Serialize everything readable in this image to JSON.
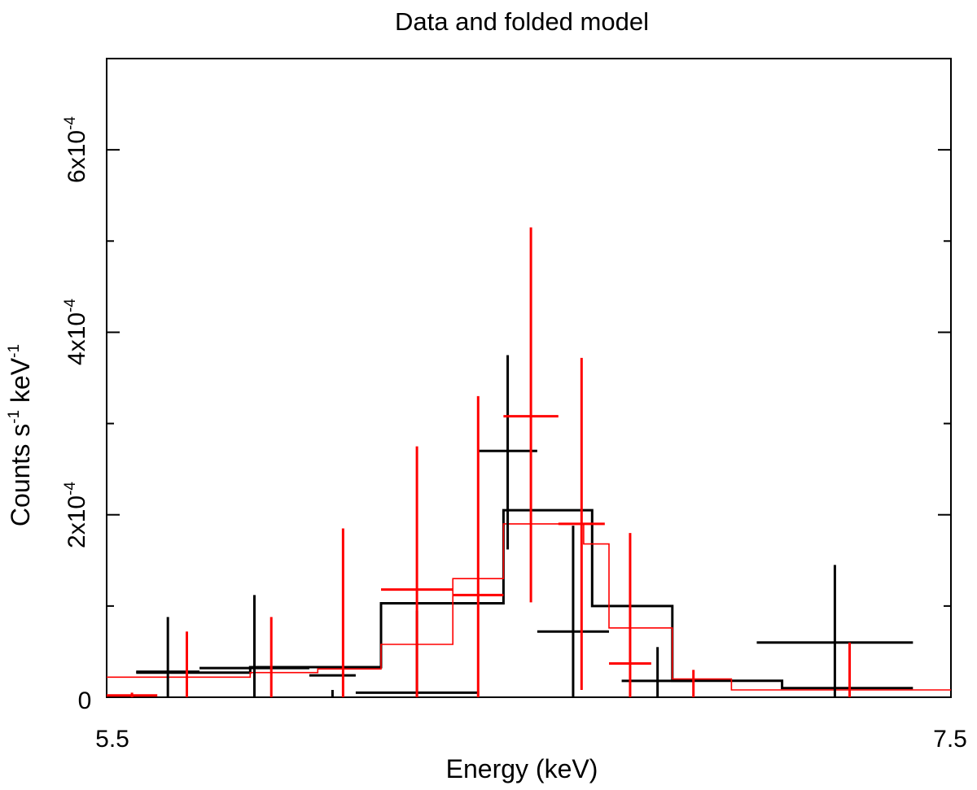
{
  "chart_data": {
    "type": "step-histogram-with-errorbars",
    "title": "Data and folded model",
    "xlabel": "Energy (keV)",
    "ylabel": {
      "base": "Counts s",
      "sup1": "-1",
      "mid": " keV",
      "sup2": "-1"
    },
    "xlim": [
      5.5,
      7.5
    ],
    "ylim": [
      0,
      0.0007
    ],
    "x_ticks": [
      {
        "value": 5.5,
        "label": "5.5"
      },
      {
        "value": 7.5,
        "label": "7.5"
      }
    ],
    "y_ticks": [
      {
        "value": 0,
        "label": "0"
      },
      {
        "value": 0.0002,
        "mantissa": "2x10",
        "exp": "-4"
      },
      {
        "value": 0.0004,
        "mantissa": "4x10",
        "exp": "-4"
      },
      {
        "value": 0.0006,
        "mantissa": "6x10",
        "exp": "-4"
      }
    ],
    "y_minor_step": 0.0001,
    "series": [
      {
        "name": "data set 1",
        "color": "#000000",
        "points": [
          {
            "x0": 5.57,
            "x1": 5.72,
            "y": 2.8e-05,
            "ylo": 0.0,
            "yhi": 8.8e-05
          },
          {
            "x0": 5.72,
            "x1": 5.98,
            "y": 3.2e-05,
            "ylo": 0.0,
            "yhi": 0.000112
          },
          {
            "x0": 5.98,
            "x1": 6.09,
            "y": 2.4e-05,
            "ylo": 0.0,
            "yhi": 8e-06
          },
          {
            "x0": 6.09,
            "x1": 6.38,
            "y": 5e-06,
            "ylo": 0.0,
            "yhi": 9.5e-05
          },
          {
            "x0": 6.38,
            "x1": 6.52,
            "y": 0.00027,
            "ylo": 0.000162,
            "yhi": 0.000375
          },
          {
            "x0": 6.52,
            "x1": 6.69,
            "y": 7.2e-05,
            "ylo": 0.0,
            "yhi": 0.000188
          },
          {
            "x0": 6.72,
            "x1": 6.89,
            "y": 1.8e-05,
            "ylo": 0.0,
            "yhi": 5.5e-05
          },
          {
            "x0": 7.04,
            "x1": 7.41,
            "y": 6e-05,
            "ylo": 0.0,
            "yhi": 0.000145
          }
        ]
      },
      {
        "name": "data set 2",
        "color": "#ff0000",
        "points": [
          {
            "x0": 5.5,
            "x1": 5.62,
            "y": 2e-06,
            "ylo": 0.0,
            "yhi": 5e-06
          },
          {
            "x0": 5.69,
            "x1": 5.69,
            "y": 2.5e-05,
            "ylo": 0.0,
            "yhi": 7.2e-05
          },
          {
            "x0": 5.89,
            "x1": 5.89,
            "y": 2.5e-05,
            "ylo": 0.0,
            "yhi": 8.8e-05
          },
          {
            "x0": 6.06,
            "x1": 6.06,
            "y": 3e-05,
            "ylo": 0.0,
            "yhi": 0.000185
          },
          {
            "x0": 6.15,
            "x1": 6.32,
            "y": 0.000118,
            "ylo": 0.0,
            "yhi": 0.000275
          },
          {
            "x0": 6.32,
            "x1": 6.44,
            "y": 0.000112,
            "ylo": 0.0,
            "yhi": 0.00033
          },
          {
            "x0": 6.44,
            "x1": 6.57,
            "y": 0.000308,
            "ylo": 0.000104,
            "yhi": 0.000515
          },
          {
            "x0": 6.57,
            "x1": 6.68,
            "y": 0.00019,
            "ylo": 8e-06,
            "yhi": 0.000372
          },
          {
            "x0": 6.69,
            "x1": 6.79,
            "y": 3.7e-05,
            "ylo": 0.0,
            "yhi": 0.00018
          },
          {
            "x0": 6.89,
            "x1": 6.89,
            "y": 1.7e-05,
            "ylo": 0.0,
            "yhi": 3e-05
          },
          {
            "x0": 7.26,
            "x1": 7.26,
            "y": 8e-06,
            "ylo": 0.0,
            "yhi": 6e-05
          }
        ]
      }
    ],
    "models": [
      {
        "name": "model 1",
        "color": "#000000",
        "edges": [
          5.57,
          5.84,
          6.15,
          6.44,
          6.65,
          6.84,
          7.1,
          7.41
        ],
        "values": [
          2.7e-05,
          3.3e-05,
          0.000103,
          0.000205,
          0.0001,
          1.8e-05,
          1e-05
        ]
      },
      {
        "name": "model 2",
        "color": "#ff0000",
        "edges": [
          5.5,
          5.84,
          6.0,
          6.15,
          6.32,
          6.39,
          6.44,
          6.63,
          6.69,
          6.84,
          6.98,
          7.5
        ],
        "values": [
          2.2e-05,
          2.7e-05,
          3.1e-05,
          5.8e-05,
          0.00013,
          0.00013,
          0.00019,
          0.000168,
          7.6e-05,
          2e-05,
          8e-06
        ]
      }
    ]
  }
}
